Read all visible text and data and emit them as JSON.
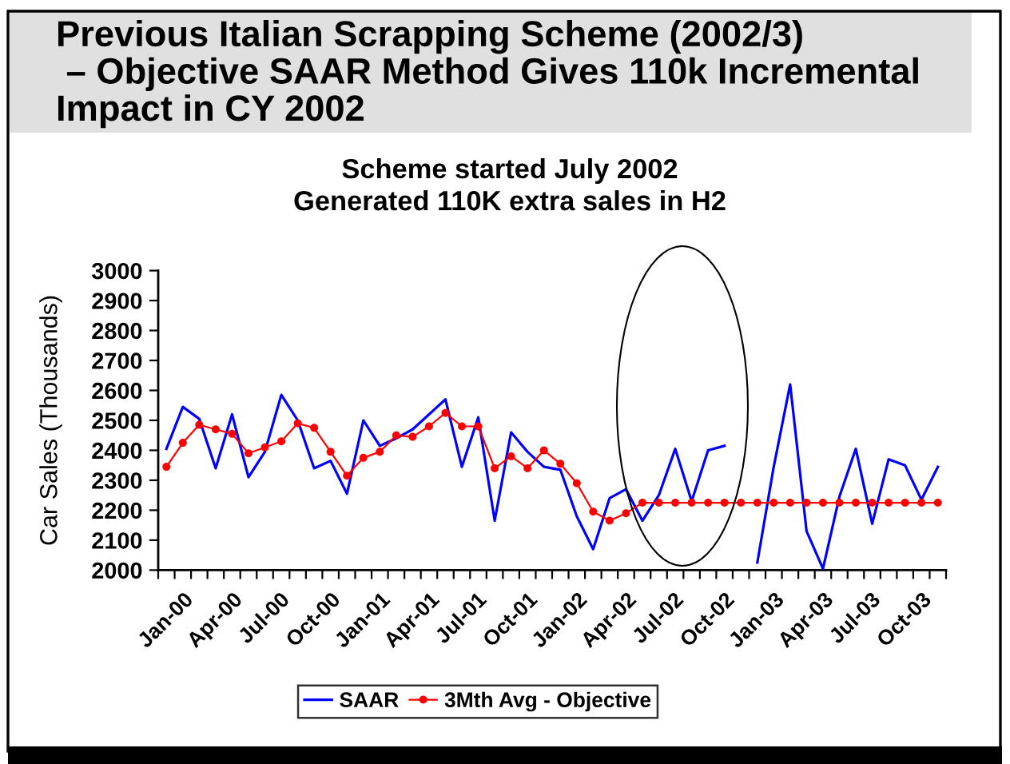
{
  "chart_data": {
    "type": "line",
    "title": "Previous Italian Scrapping Scheme (2002/3)\n – Objective SAAR Method Gives 110k Incremental\nImpact in CY 2002",
    "subtitle": "Scheme started July 2002\nGenerated 110K extra sales in H2",
    "ylabel": "Car Sales (Thousands)",
    "categories": [
      "Jan-00",
      null,
      null,
      "Apr-00",
      null,
      null,
      "Jul-00",
      null,
      null,
      "Oct-00",
      null,
      null,
      "Jan-01",
      null,
      null,
      "Apr-01",
      null,
      null,
      "Jul-01",
      null,
      null,
      "Oct-01",
      null,
      null,
      "Jan-02",
      null,
      null,
      "Apr-02",
      null,
      null,
      "Jul-02",
      null,
      null,
      "Oct-02",
      null,
      null,
      "Jan-03",
      null,
      null,
      "Apr-03",
      null,
      null,
      "Jul-03",
      null,
      null,
      "Oct-03",
      null,
      null
    ],
    "series": [
      {
        "name": "SAAR",
        "color": "#0000ff",
        "marker": "none",
        "values": [
          2405,
          2545,
          2505,
          2340,
          2520,
          2310,
          2395,
          2585,
          2500,
          2340,
          2365,
          2255,
          2500,
          2415,
          2440,
          2470,
          2520,
          2570,
          2345,
          2510,
          2165,
          2460,
          2395,
          2345,
          2335,
          2180,
          2070,
          2240,
          2270,
          2165,
          2250,
          2405,
          2230,
          2400,
          2415,
          null,
          2025,
          2345,
          2620,
          2130,
          2005,
          2245,
          2405,
          2155,
          2370,
          2350,
          2235,
          2345
        ]
      },
      {
        "name": "3Mth Avg - Objective",
        "color": "#ff0000",
        "marker": "circle",
        "values": [
          2345,
          2425,
          2485,
          2470,
          2455,
          2390,
          2410,
          2430,
          2490,
          2475,
          2395,
          2315,
          2375,
          2395,
          2450,
          2445,
          2480,
          2525,
          2480,
          2480,
          2340,
          2380,
          2340,
          2400,
          2355,
          2290,
          2195,
          2165,
          2190,
          2225,
          2225,
          2225,
          2225,
          2225,
          2225,
          2225,
          2225,
          2225,
          2225,
          2225,
          2225,
          2225,
          2225,
          2225,
          2225,
          2225,
          2225,
          2225
        ]
      }
    ],
    "ylim": [
      2000,
      3000
    ],
    "yticks": [
      2000,
      2100,
      2200,
      2300,
      2400,
      2500,
      2600,
      2700,
      2800,
      2900,
      3000
    ],
    "legend": "bottom"
  }
}
